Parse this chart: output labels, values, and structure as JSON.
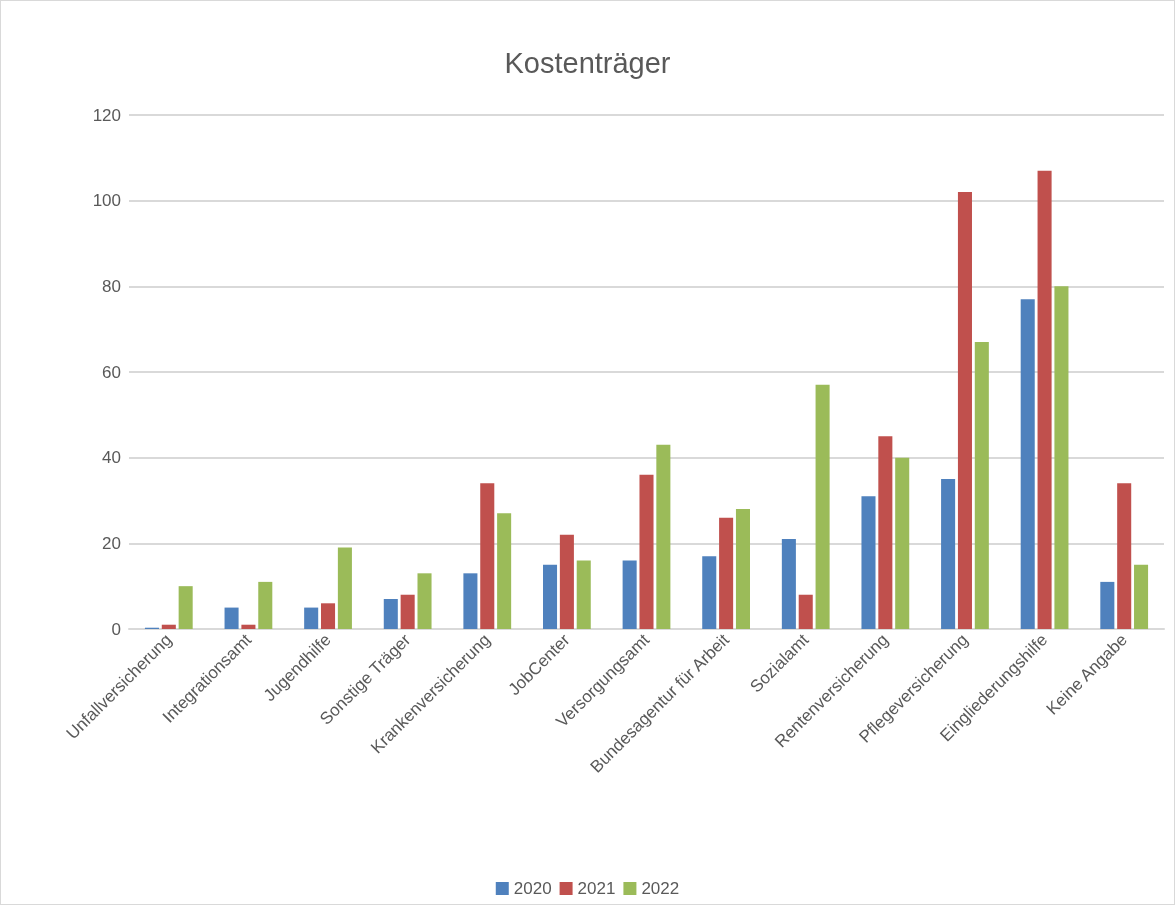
{
  "chart_data": {
    "type": "bar",
    "title": "Kostenträger",
    "categories": [
      "Unfallversicherung",
      "Integrationsamt",
      "Jugendhilfe",
      "Sonstige Träger",
      "Krankenversicherung",
      "JobCenter",
      "Versorgungsamt",
      "Bundesagentur für Arbeit",
      "Sozialamt",
      "Rentenversicherung",
      "Pflegeversicherung",
      "Eingliederungshilfe",
      "Keine Angabe"
    ],
    "series": [
      {
        "name": "2020",
        "color": "#4f81bd",
        "values": [
          0.3,
          5,
          5,
          7,
          13,
          15,
          16,
          17,
          21,
          31,
          35,
          77,
          11
        ]
      },
      {
        "name": "2021",
        "color": "#c0504d",
        "values": [
          1,
          1,
          6,
          8,
          34,
          22,
          36,
          26,
          8,
          45,
          102,
          107,
          34
        ]
      },
      {
        "name": "2022",
        "color": "#9bbb59",
        "values": [
          10,
          11,
          19,
          13,
          27,
          16,
          43,
          28,
          57,
          40,
          67,
          80,
          15
        ]
      }
    ],
    "ylim": [
      0,
      120
    ],
    "yticks": [
      0,
      20,
      40,
      60,
      80,
      100,
      120
    ],
    "grid": "y",
    "legend": "bottom"
  }
}
